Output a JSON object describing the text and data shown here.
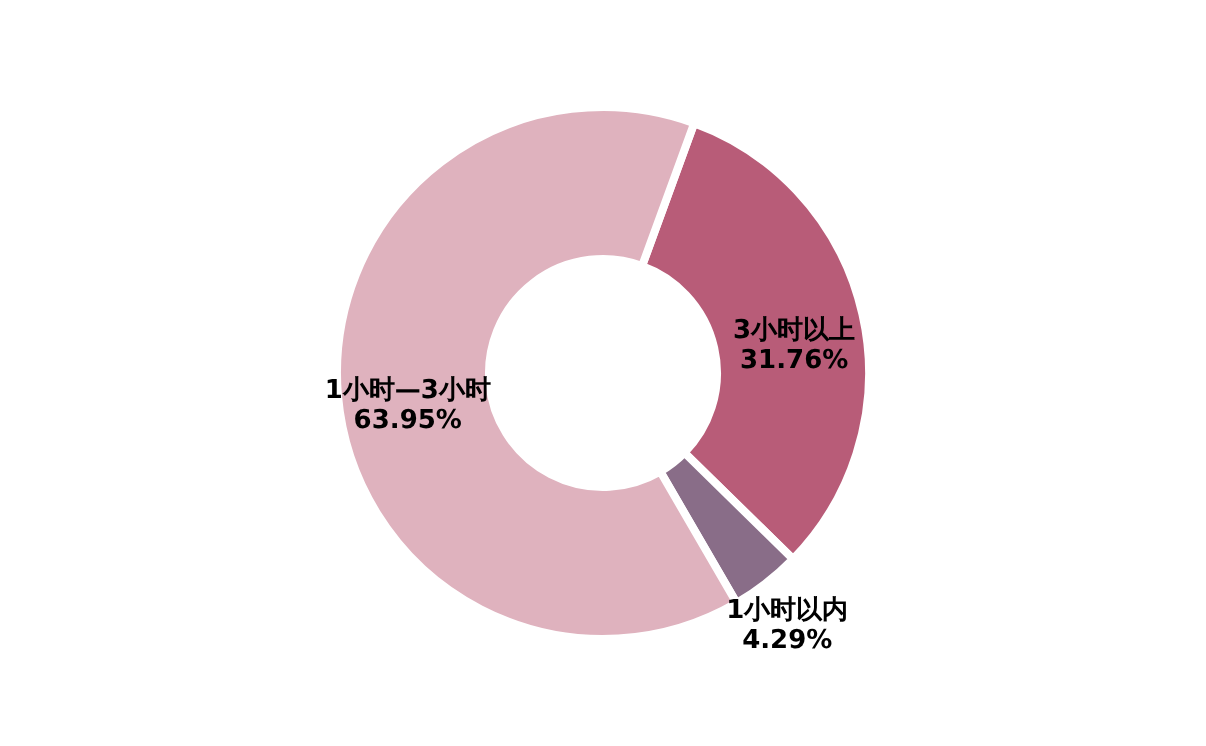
{
  "chart_data": {
    "type": "donut",
    "categories": [
      "3小时以上",
      "1小时以内",
      "1小时—3小时"
    ],
    "values": [
      31.76,
      4.29,
      63.95
    ],
    "colors": [
      "#b85c78",
      "#896d88",
      "#dfb2be"
    ],
    "value_labels": [
      "31.76%",
      "4.29%",
      "63.95%"
    ]
  }
}
